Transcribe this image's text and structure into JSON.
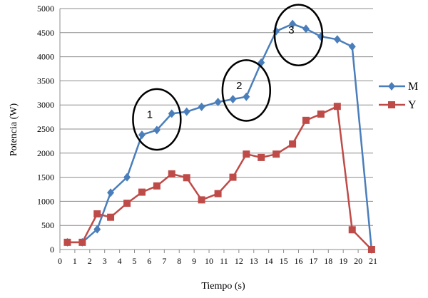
{
  "chart_data": {
    "type": "line",
    "xlabel": "Tiempo (s)",
    "ylabel": "Potencia (W)",
    "xlim": [
      0,
      21
    ],
    "ylim": [
      0,
      5000
    ],
    "x_ticks": [
      "0",
      "1",
      "2",
      "3",
      "4",
      "5",
      "6",
      "7",
      "8",
      "9",
      "10",
      "11",
      "12",
      "13",
      "14",
      "15",
      "16",
      "17",
      "18",
      "19",
      "20",
      "21"
    ],
    "y_ticks": [
      "0",
      "500",
      "1000",
      "1500",
      "2000",
      "2500",
      "3000",
      "3500",
      "4000",
      "4500",
      "5000"
    ],
    "grid": "horizontal",
    "legend_position": "right",
    "series": [
      {
        "name": "M",
        "color": "#4a7ebb",
        "marker": "diamond",
        "x": [
          0.5,
          1.5,
          2.5,
          3.4,
          4.5,
          5.5,
          6.5,
          7.5,
          8.5,
          9.5,
          10.6,
          11.6,
          12.5,
          13.5,
          14.5,
          15.6,
          16.5,
          17.5,
          18.6,
          19.6,
          20.9
        ],
        "y": [
          150,
          150,
          420,
          1180,
          1500,
          2380,
          2480,
          2820,
          2860,
          2960,
          3060,
          3120,
          3170,
          3880,
          4530,
          4680,
          4580,
          4420,
          4360,
          4210,
          0
        ]
      },
      {
        "name": "Y",
        "color": "#be4b48",
        "marker": "square",
        "x": [
          0.5,
          1.5,
          2.5,
          3.4,
          4.5,
          5.5,
          6.5,
          7.5,
          8.5,
          9.5,
          10.6,
          11.6,
          12.5,
          13.5,
          14.5,
          15.6,
          16.5,
          17.5,
          18.6,
          19.6,
          20.9
        ],
        "y": [
          150,
          150,
          740,
          670,
          960,
          1190,
          1320,
          1570,
          1490,
          1030,
          1160,
          1500,
          1980,
          1910,
          1980,
          2190,
          2680,
          2810,
          2970,
          410,
          0
        ]
      }
    ],
    "annotations": [
      {
        "label": "1",
        "x": 6.5,
        "y": 2700,
        "rx": 1.6,
        "ry": 630
      },
      {
        "label": "2",
        "x": 12.5,
        "y": 3300,
        "rx": 1.6,
        "ry": 630
      },
      {
        "label": "3",
        "x": 16.0,
        "y": 4450,
        "rx": 1.6,
        "ry": 630
      }
    ]
  }
}
